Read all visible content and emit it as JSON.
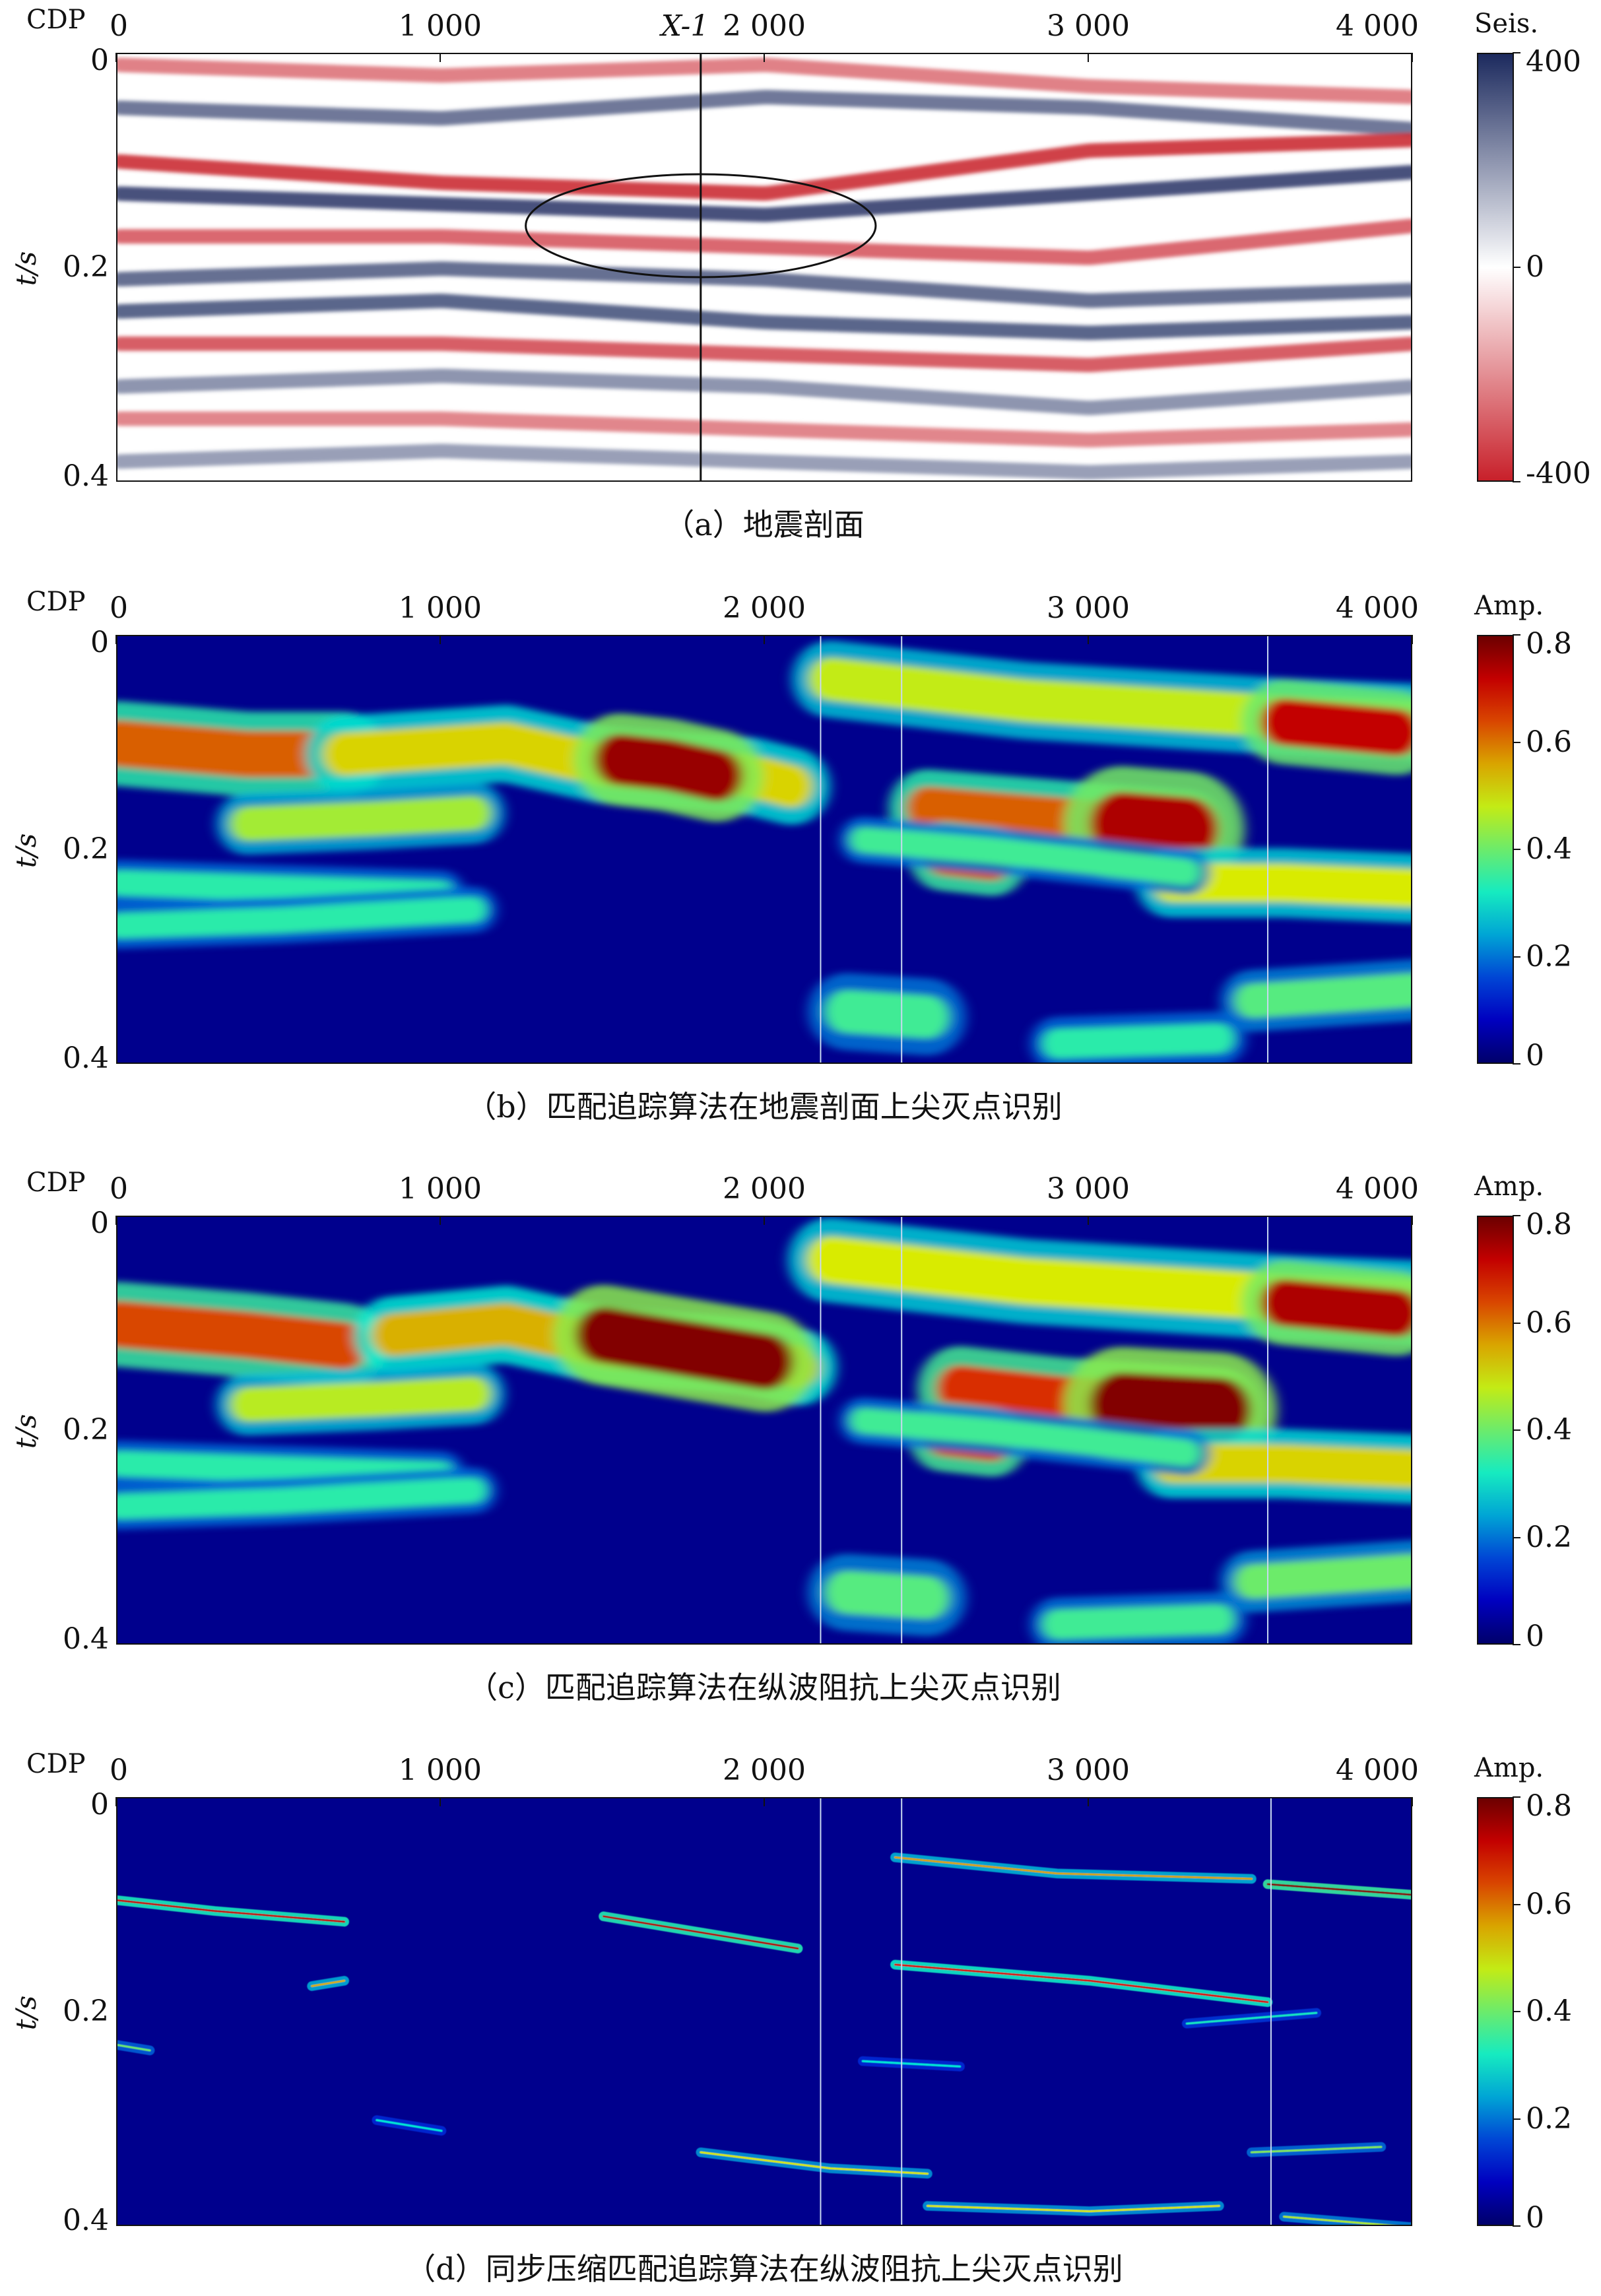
{
  "colors": {
    "seis_pos": "#1c2a5e",
    "seis_mid": "#ffffff",
    "seis_neg": "#c8202a",
    "amp_low": "#00008f",
    "amp_mid": "#33c9a8",
    "amp_high": "#c80000"
  },
  "chart_data": [
    {
      "type": "heatmap",
      "panel": "a",
      "caption": "（a）地震剖面",
      "xlabel": "CDP",
      "ylabel": "t/s",
      "xticks": [
        "0",
        "1 000",
        "2 000",
        "3 000",
        "4 000"
      ],
      "xtick_values": [
        0,
        1000,
        2000,
        3000,
        4000
      ],
      "yticks": [
        "0",
        "0.2",
        "0.4"
      ],
      "ytick_values": [
        0,
        0.2,
        0.4
      ],
      "xlim": [
        0,
        4000
      ],
      "ylim": [
        0,
        0.4
      ],
      "colorbar_title": "Seis.",
      "colorbar_ticks": [
        "400",
        "0",
        "-400"
      ],
      "colorbar_tick_values": [
        400,
        0,
        -400
      ],
      "clim": [
        -400,
        400
      ],
      "well_label": "X-1",
      "well_cdp": 1800,
      "ellipse": {
        "cdp_center": 1800,
        "t_center": 0.16,
        "cdp_radius": 540,
        "t_radius": 0.048
      },
      "horizons": [
        {
          "t": [
            0.01,
            0.02,
            0.01,
            0.03,
            0.04
          ],
          "cdp": [
            0,
            1000,
            2000,
            3000,
            4000
          ],
          "value": -250
        },
        {
          "t": [
            0.05,
            0.06,
            0.04,
            0.05,
            0.07
          ],
          "cdp": [
            0,
            1000,
            2000,
            3000,
            4000
          ],
          "value": 280
        },
        {
          "t": [
            0.1,
            0.12,
            0.13,
            0.09,
            0.08
          ],
          "cdp": [
            0,
            1000,
            2000,
            3000,
            4000
          ],
          "value": -380
        },
        {
          "t": [
            0.13,
            0.14,
            0.15,
            0.13,
            0.11
          ],
          "cdp": [
            0,
            1000,
            2000,
            3000,
            4000
          ],
          "value": 360
        },
        {
          "t": [
            0.17,
            0.17,
            0.18,
            0.19,
            0.16
          ],
          "cdp": [
            0,
            1000,
            2000,
            3000,
            4000
          ],
          "value": -300
        },
        {
          "t": [
            0.21,
            0.2,
            0.21,
            0.23,
            0.22
          ],
          "cdp": [
            0,
            1000,
            2000,
            3000,
            4000
          ],
          "value": 300
        },
        {
          "t": [
            0.24,
            0.23,
            0.25,
            0.26,
            0.25
          ],
          "cdp": [
            0,
            1000,
            2000,
            3000,
            4000
          ],
          "value": 320
        },
        {
          "t": [
            0.27,
            0.27,
            0.28,
            0.29,
            0.27
          ],
          "cdp": [
            0,
            1000,
            2000,
            3000,
            4000
          ],
          "value": -320
        },
        {
          "t": [
            0.31,
            0.3,
            0.31,
            0.33,
            0.31
          ],
          "cdp": [
            0,
            1000,
            2000,
            3000,
            4000
          ],
          "value": 220
        },
        {
          "t": [
            0.34,
            0.34,
            0.35,
            0.36,
            0.35
          ],
          "cdp": [
            0,
            1000,
            2000,
            3000,
            4000
          ],
          "value": -240
        },
        {
          "t": [
            0.38,
            0.37,
            0.38,
            0.39,
            0.38
          ],
          "cdp": [
            0,
            1000,
            2000,
            3000,
            4000
          ],
          "value": 200
        }
      ]
    },
    {
      "type": "heatmap",
      "panel": "b",
      "caption": "（b）匹配追踪算法在地震剖面上尖灭点识别",
      "xlabel": "CDP",
      "ylabel": "t/s",
      "xticks": [
        "0",
        "1 000",
        "2 000",
        "3 000",
        "4 000"
      ],
      "xtick_values": [
        0,
        1000,
        2000,
        3000,
        4000
      ],
      "yticks": [
        "0",
        "0.2",
        "0.4"
      ],
      "ytick_values": [
        0,
        0.2,
        0.4
      ],
      "xlim": [
        0,
        4000
      ],
      "ylim": [
        0,
        0.4
      ],
      "colorbar_title": "Amp.",
      "colorbar_ticks": [
        "0.8",
        "0.6",
        "0.4",
        "0.2",
        "0"
      ],
      "colorbar_tick_values": [
        0.8,
        0.6,
        0.4,
        0.2,
        0
      ],
      "clim": [
        0,
        0.8
      ],
      "marker_cdps": [
        2170,
        2420,
        3550
      ],
      "events": [
        {
          "cdp": [
            0,
            400,
            700
          ],
          "t": [
            0.1,
            0.11,
            0.11
          ],
          "amp": 0.62,
          "thick": 0.022
        },
        {
          "cdp": [
            700,
            1200,
            1500,
            1950,
            2080
          ],
          "t": [
            0.11,
            0.1,
            0.12,
            0.13,
            0.14
          ],
          "amp": 0.52,
          "thick": 0.02
        },
        {
          "cdp": [
            1550,
            1700,
            1850
          ],
          "t": [
            0.115,
            0.12,
            0.13
          ],
          "amp": 0.76,
          "thick": 0.024
        },
        {
          "cdp": [
            400,
            800,
            1100
          ],
          "t": [
            0.175,
            0.17,
            0.165
          ],
          "amp": 0.45,
          "thick": 0.016
        },
        {
          "cdp": [
            2200,
            2800,
            3600,
            4000
          ],
          "t": [
            0.04,
            0.06,
            0.075,
            0.08
          ],
          "amp": 0.48,
          "thick": 0.02
        },
        {
          "cdp": [
            3600,
            3950
          ],
          "t": [
            0.08,
            0.09
          ],
          "amp": 0.72,
          "thick": 0.022
        },
        {
          "cdp": [
            2500,
            2900,
            3300
          ],
          "t": [
            0.16,
            0.17,
            0.18
          ],
          "amp": 0.62,
          "thick": 0.02
        },
        {
          "cdp": [
            3100,
            3300
          ],
          "t": [
            0.175,
            0.18
          ],
          "amp": 0.74,
          "thick": 0.03
        },
        {
          "cdp": [
            2550,
            2700
          ],
          "t": [
            0.205,
            0.21
          ],
          "amp": 0.64,
          "thick": 0.018
        },
        {
          "cdp": [
            3250,
            3600,
            4000
          ],
          "t": [
            0.23,
            0.23,
            0.235
          ],
          "amp": 0.5,
          "thick": 0.018
        },
        {
          "cdp": [
            2300,
            2700,
            3300
          ],
          "t": [
            0.19,
            0.2,
            0.22
          ],
          "amp": 0.36,
          "thick": 0.012
        },
        {
          "cdp": [
            0,
            500,
            1000
          ],
          "t": [
            0.23,
            0.235,
            0.24
          ],
          "amp": 0.34,
          "thick": 0.012
        },
        {
          "cdp": [
            0,
            500,
            1100
          ],
          "t": [
            0.27,
            0.265,
            0.255
          ],
          "amp": 0.34,
          "thick": 0.012
        },
        {
          "cdp": [
            2250,
            2500
          ],
          "t": [
            0.35,
            0.355
          ],
          "amp": 0.36,
          "thick": 0.02
        },
        {
          "cdp": [
            3500,
            4000
          ],
          "t": [
            0.34,
            0.33
          ],
          "amp": 0.38,
          "thick": 0.016
        },
        {
          "cdp": [
            2900,
            3400
          ],
          "t": [
            0.38,
            0.375
          ],
          "amp": 0.34,
          "thick": 0.014
        }
      ]
    },
    {
      "type": "heatmap",
      "panel": "c",
      "caption": "（c）匹配追踪算法在纵波阻抗上尖灭点识别",
      "xlabel": "CDP",
      "ylabel": "t/s",
      "xticks": [
        "0",
        "1 000",
        "2 000",
        "3 000",
        "4 000"
      ],
      "xtick_values": [
        0,
        1000,
        2000,
        3000,
        4000
      ],
      "yticks": [
        "0",
        "0.2",
        "0.4"
      ],
      "ytick_values": [
        0,
        0.2,
        0.4
      ],
      "xlim": [
        0,
        4000
      ],
      "ylim": [
        0,
        0.4
      ],
      "colorbar_title": "Amp.",
      "colorbar_ticks": [
        "0.8",
        "0.6",
        "0.4",
        "0.2",
        "0"
      ],
      "colorbar_tick_values": [
        0.8,
        0.6,
        0.4,
        0.2,
        0
      ],
      "clim": [
        0,
        0.8
      ],
      "marker_cdps": [
        2170,
        2420,
        3550
      ],
      "events": [
        {
          "cdp": [
            0,
            400,
            700
          ],
          "t": [
            0.1,
            0.11,
            0.12
          ],
          "amp": 0.64,
          "thick": 0.022
        },
        {
          "cdp": [
            850,
            1200,
            1500,
            1950,
            2100
          ],
          "t": [
            0.11,
            0.1,
            0.12,
            0.13,
            0.14
          ],
          "amp": 0.55,
          "thick": 0.02
        },
        {
          "cdp": [
            1500,
            1700,
            2000
          ],
          "t": [
            0.11,
            0.12,
            0.135
          ],
          "amp": 0.78,
          "thick": 0.026
        },
        {
          "cdp": [
            400,
            800,
            1100
          ],
          "t": [
            0.175,
            0.17,
            0.165
          ],
          "amp": 0.47,
          "thick": 0.016
        },
        {
          "cdp": [
            2200,
            2800,
            3600,
            4000
          ],
          "t": [
            0.04,
            0.06,
            0.075,
            0.08
          ],
          "amp": 0.5,
          "thick": 0.022
        },
        {
          "cdp": [
            3600,
            3950
          ],
          "t": [
            0.08,
            0.09
          ],
          "amp": 0.74,
          "thick": 0.022
        },
        {
          "cdp": [
            2600,
            2900,
            3400
          ],
          "t": [
            0.16,
            0.17,
            0.18
          ],
          "amp": 0.66,
          "thick": 0.022
        },
        {
          "cdp": [
            3100,
            3400
          ],
          "t": [
            0.175,
            0.18
          ],
          "amp": 0.78,
          "thick": 0.03
        },
        {
          "cdp": [
            2550,
            2700
          ],
          "t": [
            0.205,
            0.21
          ],
          "amp": 0.66,
          "thick": 0.018
        },
        {
          "cdp": [
            3250,
            3600,
            4000
          ],
          "t": [
            0.23,
            0.23,
            0.235
          ],
          "amp": 0.52,
          "thick": 0.018
        },
        {
          "cdp": [
            2300,
            2700,
            3300
          ],
          "t": [
            0.19,
            0.2,
            0.22
          ],
          "amp": 0.36,
          "thick": 0.012
        },
        {
          "cdp": [
            0,
            500,
            1000
          ],
          "t": [
            0.23,
            0.235,
            0.24
          ],
          "amp": 0.34,
          "thick": 0.012
        },
        {
          "cdp": [
            0,
            500,
            1100
          ],
          "t": [
            0.27,
            0.265,
            0.255
          ],
          "amp": 0.34,
          "thick": 0.012
        },
        {
          "cdp": [
            2250,
            2500
          ],
          "t": [
            0.35,
            0.355
          ],
          "amp": 0.38,
          "thick": 0.02
        },
        {
          "cdp": [
            3500,
            4000
          ],
          "t": [
            0.34,
            0.33
          ],
          "amp": 0.4,
          "thick": 0.016
        },
        {
          "cdp": [
            2900,
            3400
          ],
          "t": [
            0.38,
            0.375
          ],
          "amp": 0.36,
          "thick": 0.014
        }
      ]
    },
    {
      "type": "heatmap",
      "panel": "d",
      "caption": "（d）同步压缩匹配追踪算法在纵波阻抗上尖灭点识别",
      "xlabel": "CDP",
      "ylabel": "t/s",
      "xticks": [
        "0",
        "1 000",
        "2 000",
        "3 000",
        "4 000"
      ],
      "xtick_values": [
        0,
        1000,
        2000,
        3000,
        4000
      ],
      "yticks": [
        "0",
        "0.2",
        "0.4"
      ],
      "ytick_values": [
        0,
        0.2,
        0.4
      ],
      "xlim": [
        0,
        4000
      ],
      "ylim": [
        0,
        0.4
      ],
      "colorbar_title": "Amp.",
      "colorbar_ticks": [
        "0.8",
        "0.6",
        "0.4",
        "0.2",
        "0"
      ],
      "colorbar_tick_values": [
        0.8,
        0.6,
        0.4,
        0.2,
        0
      ],
      "clim": [
        0,
        0.8
      ],
      "marker_cdps": [
        2170,
        2420,
        3560
      ],
      "events": [
        {
          "cdp": [
            0,
            300,
            700
          ],
          "t": [
            0.095,
            0.105,
            0.115
          ],
          "amp": 0.72,
          "thick": 0.003
        },
        {
          "cdp": [
            1500,
            1800,
            2100
          ],
          "t": [
            0.11,
            0.125,
            0.14
          ],
          "amp": 0.74,
          "thick": 0.003
        },
        {
          "cdp": [
            2400,
            2900,
            3500
          ],
          "t": [
            0.055,
            0.07,
            0.075
          ],
          "amp": 0.56,
          "thick": 0.003
        },
        {
          "cdp": [
            3550,
            4000
          ],
          "t": [
            0.08,
            0.09
          ],
          "amp": 0.78,
          "thick": 0.003
        },
        {
          "cdp": [
            2400,
            3000,
            3550
          ],
          "t": [
            0.155,
            0.17,
            0.19
          ],
          "amp": 0.7,
          "thick": 0.003
        },
        {
          "cdp": [
            600,
            700
          ],
          "t": [
            0.175,
            0.17
          ],
          "amp": 0.55,
          "thick": 0.003
        },
        {
          "cdp": [
            1800,
            2200,
            2500
          ],
          "t": [
            0.33,
            0.345,
            0.35
          ],
          "amp": 0.5,
          "thick": 0.003
        },
        {
          "cdp": [
            2500,
            3000,
            3400
          ],
          "t": [
            0.38,
            0.385,
            0.38
          ],
          "amp": 0.5,
          "thick": 0.003
        },
        {
          "cdp": [
            3600,
            4000
          ],
          "t": [
            0.39,
            0.4
          ],
          "amp": 0.46,
          "thick": 0.003
        },
        {
          "cdp": [
            3500,
            3900
          ],
          "t": [
            0.33,
            0.325
          ],
          "amp": 0.42,
          "thick": 0.003
        },
        {
          "cdp": [
            0,
            100
          ],
          "t": [
            0.23,
            0.235
          ],
          "amp": 0.4,
          "thick": 0.003
        },
        {
          "cdp": [
            800,
            1000
          ],
          "t": [
            0.3,
            0.31
          ],
          "amp": 0.3,
          "thick": 0.003
        },
        {
          "cdp": [
            2300,
            2600
          ],
          "t": [
            0.245,
            0.25
          ],
          "amp": 0.3,
          "thick": 0.003
        },
        {
          "cdp": [
            3300,
            3700
          ],
          "t": [
            0.21,
            0.2
          ],
          "amp": 0.32,
          "thick": 0.003
        }
      ]
    }
  ]
}
